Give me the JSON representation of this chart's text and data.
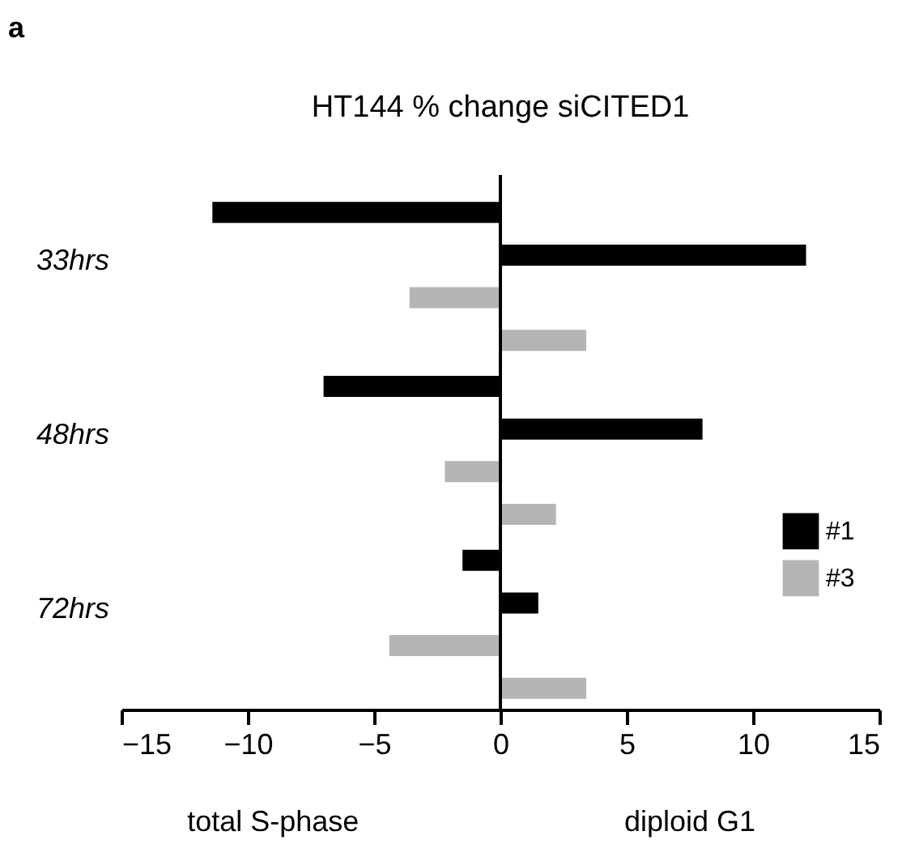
{
  "chart_data": {
    "type": "bar",
    "orientation": "horizontal",
    "title": "HT144 % change siCITED1",
    "categories": [
      "33hrs",
      "48hrs",
      "72hrs"
    ],
    "series": [
      {
        "name": "#1",
        "color": "#000000",
        "values": [
          -11.4,
          -7.0,
          -1.5
        ]
      },
      {
        "color": "#000000",
        "values": [
          12.1,
          8.0,
          1.5
        ]
      },
      {
        "name": "#3",
        "color": "#b4b5b7",
        "values": [
          -3.6,
          -2.2,
          -4.4
        ]
      },
      {
        "color": "#b4b5b7",
        "values": [
          3.4,
          2.2,
          3.4
        ]
      }
    ],
    "xlim": [
      -15,
      15
    ],
    "xticks": [
      -15,
      -10,
      -5,
      0,
      5,
      10,
      15
    ],
    "ref_lines": [
      {
        "axis": "x",
        "value": 0
      }
    ],
    "annotations": [
      "a",
      "total S-phase",
      "diploid G1"
    ],
    "legend": "right",
    "grid": false
  }
}
